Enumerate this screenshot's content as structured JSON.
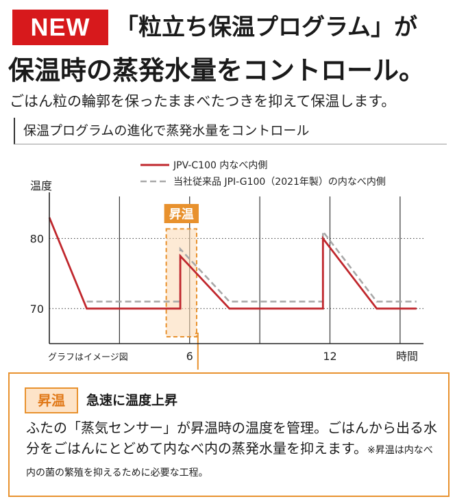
{
  "header": {
    "badge": "NEW",
    "headline_line1": "「粒立ち保温プログラム」が",
    "headline_line2": "保温時の蒸発水量をコントロール。",
    "lead": "ごはん粒の輪郭を保ったままべたつきを抑えて保温します。"
  },
  "section": {
    "title": "保温プログラムの進化で蒸発水量をコントロール"
  },
  "chart_data": {
    "type": "line",
    "ylabel": "温度",
    "xlabel": "時間",
    "note": "グラフはイメージ図",
    "x_ticks": [
      6,
      12
    ],
    "y_ticks": [
      70,
      80
    ],
    "xlim": [
      0,
      16
    ],
    "ylim": [
      65,
      86
    ],
    "grid": true,
    "legend_position": "top-right",
    "highlight": {
      "label": "昇温",
      "x_range": [
        5.0,
        6.3
      ]
    },
    "series": [
      {
        "name": "JPV-C100 内なべ内側",
        "color": "#c0272d",
        "dash": "solid",
        "points": [
          [
            0,
            83
          ],
          [
            1.6,
            70
          ],
          [
            5.6,
            70
          ],
          [
            5.6,
            77.5
          ],
          [
            7.7,
            70
          ],
          [
            11.7,
            70
          ],
          [
            11.7,
            80
          ],
          [
            14,
            70
          ],
          [
            15.7,
            70
          ]
        ]
      },
      {
        "name": "当社従来品 JPI-G100（2021年製）の内なべ内側",
        "color": "#a8a8a8",
        "dash": "dashed",
        "points": [
          [
            1.6,
            71
          ],
          [
            5.6,
            71
          ],
          [
            5.6,
            78.5
          ],
          [
            7.7,
            71
          ],
          [
            11.7,
            71
          ],
          [
            11.7,
            81
          ],
          [
            14,
            71
          ],
          [
            15.7,
            71
          ]
        ]
      }
    ]
  },
  "callout": {
    "tag": "昇温",
    "heading": "急速に温度上昇",
    "body": "ふたの「蒸気センサー」が昇温時の温度を管理。ごはんから出る水分をごはんにとどめて内なべ内の蒸発水量を抑えます。",
    "note": "※昇温は内なべ内の菌の繁殖を抑えるために必要な工程。"
  },
  "colors": {
    "brand_red": "#d7191c",
    "accent_orange": "#e8912d",
    "tag_fill": "#fde3c8"
  }
}
